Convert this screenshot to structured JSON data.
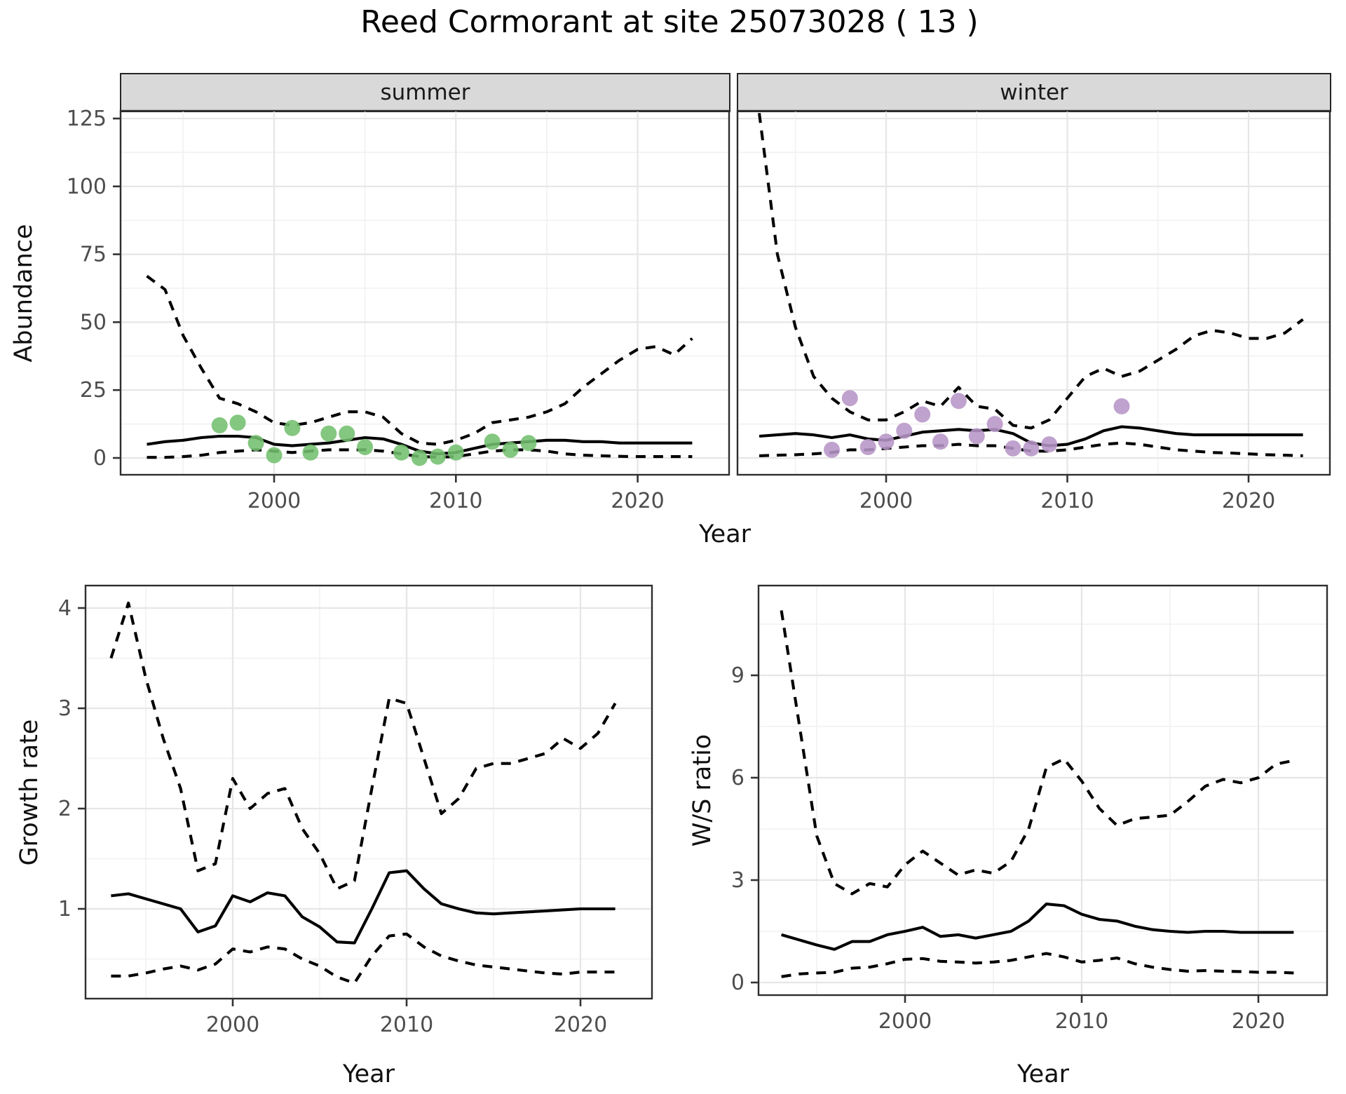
{
  "title": "Reed Cormorant at site 25073028 ( 13 )",
  "colors": {
    "summer_points": "#73bf6e",
    "winter_points": "#b795c7",
    "line": "#000000",
    "strip_background": "#d9d9d9",
    "grid_major": "#e6e6e6",
    "grid_minor": "#f2f2f2",
    "frame": "#2e2e2e",
    "tick_text": "#4d4d4d"
  },
  "chart_data": [
    {
      "id": "abundance-summer",
      "type": "line",
      "facet": "summer",
      "x_label": "Year",
      "y_label": "Abundance",
      "x_ticks": [
        2000,
        2010,
        2020
      ],
      "y_ticks": [
        0,
        25,
        50,
        75,
        100,
        125
      ],
      "ylim": [
        -6,
        128
      ],
      "years": [
        1993,
        1994,
        1995,
        1996,
        1997,
        1998,
        1999,
        2000,
        2001,
        2002,
        2003,
        2004,
        2005,
        2006,
        2007,
        2008,
        2009,
        2010,
        2011,
        2012,
        2013,
        2014,
        2015,
        2016,
        2017,
        2018,
        2019,
        2020,
        2021,
        2022,
        2023
      ],
      "series": [
        {
          "name": "ci_upper",
          "style": "dashed",
          "values": [
            67,
            62,
            45,
            33,
            22,
            20,
            17,
            13,
            12,
            13,
            15,
            17,
            17,
            15,
            9,
            5.5,
            5,
            6.5,
            9,
            13,
            14,
            15,
            17,
            20,
            26,
            31,
            36,
            40,
            41,
            38,
            44
          ]
        },
        {
          "name": "fit_mean",
          "style": "solid",
          "values": [
            5,
            6,
            6.5,
            7.5,
            8,
            8,
            7.5,
            5,
            4.5,
            5,
            5.5,
            6.5,
            7.5,
            7,
            5,
            2.5,
            1.5,
            2,
            3.5,
            5,
            5.5,
            6,
            6.5,
            6.5,
            6,
            6,
            5.5,
            5.5,
            5.5,
            5.5,
            5.5
          ]
        },
        {
          "name": "ci_lower",
          "style": "dashed",
          "values": [
            0.2,
            0.2,
            0.5,
            1,
            2,
            2.5,
            3,
            2.5,
            2,
            2.5,
            3,
            3,
            3,
            2.5,
            1.5,
            0.5,
            0.3,
            0.5,
            1.5,
            2.5,
            3,
            3,
            2.5,
            1.5,
            1,
            0.8,
            0.6,
            0.5,
            0.5,
            0.5,
            0.5
          ]
        }
      ],
      "points": {
        "name": "observed_counts_summer",
        "color": "#73bf6e",
        "years": [
          1997,
          1998,
          1999,
          2000,
          2001,
          2002,
          2003,
          2004,
          2005,
          2007,
          2008,
          2009,
          2010,
          2012,
          2013,
          2014
        ],
        "values": [
          12,
          13,
          5.5,
          1,
          11,
          2,
          9,
          9,
          4,
          2,
          0,
          0.5,
          2,
          6,
          3,
          5.5
        ]
      }
    },
    {
      "id": "abundance-winter",
      "type": "line",
      "facet": "winter",
      "x_label": "Year",
      "y_label": "Abundance",
      "x_ticks": [
        2000,
        2010,
        2020
      ],
      "y_ticks": [
        0,
        25,
        50,
        75,
        100,
        125
      ],
      "ylim": [
        -6,
        128
      ],
      "years": [
        1993,
        1994,
        1995,
        1996,
        1997,
        1998,
        1999,
        2000,
        2001,
        2002,
        2003,
        2004,
        2005,
        2006,
        2007,
        2008,
        2009,
        2010,
        2011,
        2012,
        2013,
        2014,
        2015,
        2016,
        2017,
        2018,
        2019,
        2020,
        2021,
        2022,
        2023
      ],
      "series": [
        {
          "name": "ci_upper",
          "style": "dashed",
          "values": [
            127,
            75,
            48,
            30,
            22,
            17,
            14,
            14,
            17,
            21,
            19,
            26,
            19,
            18,
            12,
            11,
            14,
            22,
            30,
            33,
            30,
            32,
            36,
            40,
            45,
            47,
            46,
            44,
            44,
            46,
            51
          ]
        },
        {
          "name": "fit_mean",
          "style": "solid",
          "values": [
            8,
            8.5,
            9,
            8.5,
            7.5,
            8.5,
            7,
            6.5,
            8,
            9.5,
            10,
            10.5,
            10,
            10.5,
            9,
            5.5,
            4.5,
            5,
            7,
            10,
            11.5,
            11,
            10,
            9,
            8.5,
            8.5,
            8.5,
            8.5,
            8.5,
            8.5,
            8.5
          ]
        },
        {
          "name": "ci_lower",
          "style": "dashed",
          "values": [
            0.8,
            1,
            1.2,
            1.5,
            2,
            3,
            3,
            3.5,
            4,
            4.5,
            4.5,
            5,
            4.5,
            4.5,
            3.5,
            2.5,
            2.5,
            3,
            4,
            5,
            5.5,
            5,
            4,
            3,
            2.5,
            2,
            1.8,
            1.5,
            1.2,
            1,
            0.8
          ]
        }
      ],
      "points": {
        "name": "observed_counts_winter",
        "color": "#b795c7",
        "years": [
          1997,
          1998,
          1999,
          2000,
          2001,
          2002,
          2003,
          2004,
          2005,
          2006,
          2007,
          2008,
          2009,
          2013
        ],
        "values": [
          3,
          22,
          4,
          6,
          10,
          16,
          6,
          21,
          8,
          12.5,
          3.5,
          3.5,
          5,
          19
        ]
      }
    },
    {
      "id": "growth-rate",
      "type": "line",
      "facet": null,
      "x_label": "Year",
      "y_label": "Growth rate",
      "x_ticks": [
        2000,
        2010,
        2020
      ],
      "y_ticks": [
        1,
        2,
        3,
        4
      ],
      "ylim": [
        0.1,
        4.25
      ],
      "years": [
        1993,
        1994,
        1995,
        1996,
        1997,
        1998,
        1999,
        2000,
        2001,
        2002,
        2003,
        2004,
        2005,
        2006,
        2007,
        2008,
        2009,
        2010,
        2011,
        2012,
        2013,
        2014,
        2015,
        2016,
        2017,
        2018,
        2019,
        2020,
        2021,
        2022
      ],
      "series": [
        {
          "name": "ci_upper",
          "style": "dashed",
          "values": [
            3.5,
            4.05,
            3.3,
            2.7,
            2.2,
            1.38,
            1.45,
            2.3,
            2.0,
            2.15,
            2.2,
            1.8,
            1.55,
            1.2,
            1.28,
            2.2,
            3.1,
            3.05,
            2.5,
            1.95,
            2.1,
            2.4,
            2.45,
            2.45,
            2.5,
            2.55,
            2.7,
            2.6,
            2.75,
            3.05
          ]
        },
        {
          "name": "fit_mean",
          "style": "solid",
          "values": [
            1.13,
            1.15,
            1.1,
            1.05,
            1.0,
            0.77,
            0.83,
            1.13,
            1.07,
            1.16,
            1.13,
            0.92,
            0.82,
            0.67,
            0.66,
            1.0,
            1.36,
            1.38,
            1.2,
            1.05,
            1.0,
            0.96,
            0.95,
            0.96,
            0.97,
            0.98,
            0.99,
            1.0,
            1.0,
            1.0
          ]
        },
        {
          "name": "ci_lower",
          "style": "dashed",
          "values": [
            0.33,
            0.33,
            0.36,
            0.4,
            0.43,
            0.39,
            0.45,
            0.6,
            0.57,
            0.62,
            0.6,
            0.5,
            0.43,
            0.32,
            0.26,
            0.53,
            0.73,
            0.75,
            0.62,
            0.53,
            0.48,
            0.44,
            0.42,
            0.4,
            0.38,
            0.36,
            0.35,
            0.37,
            0.37,
            0.37
          ]
        }
      ],
      "points": null
    },
    {
      "id": "ws-ratio",
      "type": "line",
      "facet": null,
      "x_label": "Year",
      "y_label": "W/S ratio",
      "x_ticks": [
        2000,
        2010,
        2020
      ],
      "y_ticks": [
        0,
        3,
        6,
        9
      ],
      "ylim": [
        -0.4,
        11.6
      ],
      "years": [
        1993,
        1994,
        1995,
        1996,
        1997,
        1998,
        1999,
        2000,
        2001,
        2002,
        2003,
        2004,
        2005,
        2006,
        2007,
        2008,
        2009,
        2010,
        2011,
        2012,
        2013,
        2014,
        2015,
        2016,
        2017,
        2018,
        2019,
        2020,
        2021,
        2022
      ],
      "series": [
        {
          "name": "ci_upper",
          "style": "dashed",
          "values": [
            10.9,
            7.6,
            4.3,
            2.9,
            2.6,
            2.9,
            2.8,
            3.45,
            3.85,
            3.5,
            3.15,
            3.3,
            3.2,
            3.55,
            4.5,
            6.3,
            6.55,
            5.9,
            5.1,
            4.6,
            4.8,
            4.85,
            4.9,
            5.3,
            5.75,
            5.95,
            5.85,
            6.0,
            6.4,
            6.5
          ]
        },
        {
          "name": "fit_mean",
          "style": "solid",
          "values": [
            1.4,
            1.25,
            1.1,
            0.97,
            1.2,
            1.2,
            1.4,
            1.5,
            1.62,
            1.35,
            1.4,
            1.3,
            1.4,
            1.5,
            1.8,
            2.3,
            2.25,
            2.0,
            1.85,
            1.8,
            1.65,
            1.55,
            1.5,
            1.47,
            1.5,
            1.5,
            1.47,
            1.47,
            1.47,
            1.47
          ]
        },
        {
          "name": "ci_lower",
          "style": "dashed",
          "values": [
            0.17,
            0.25,
            0.28,
            0.3,
            0.42,
            0.45,
            0.55,
            0.68,
            0.7,
            0.62,
            0.6,
            0.57,
            0.6,
            0.65,
            0.75,
            0.85,
            0.75,
            0.6,
            0.65,
            0.72,
            0.55,
            0.45,
            0.38,
            0.33,
            0.35,
            0.33,
            0.32,
            0.3,
            0.3,
            0.28
          ]
        }
      ],
      "points": null
    }
  ]
}
